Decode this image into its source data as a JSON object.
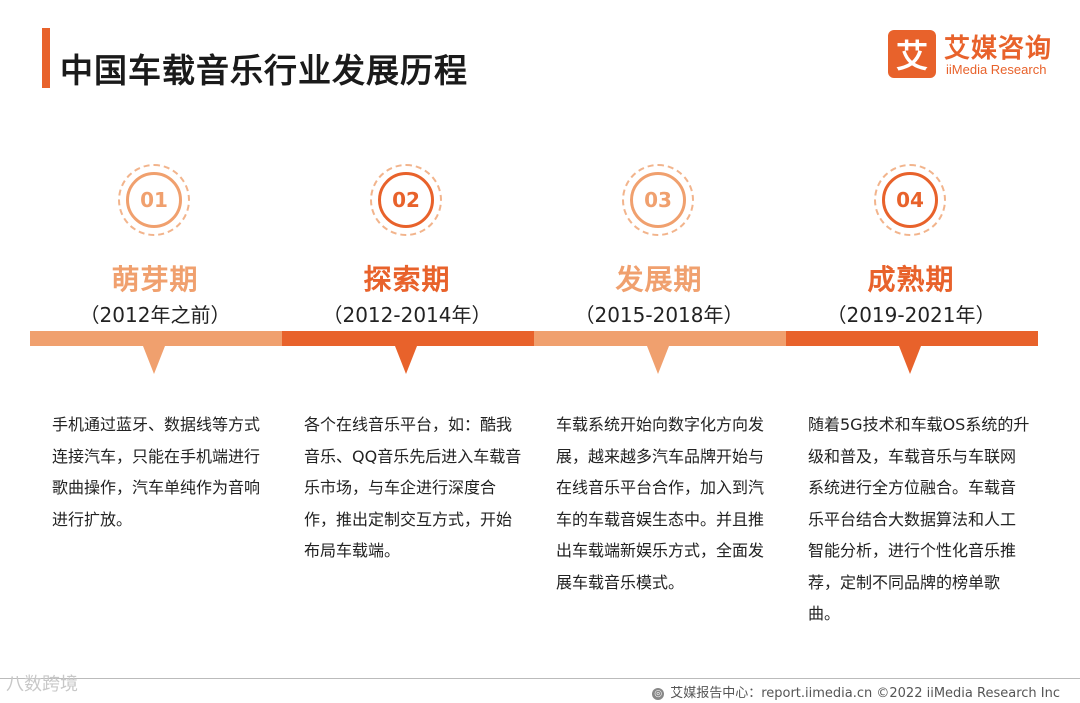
{
  "title": "中国车载音乐行业发展历程",
  "logo": {
    "mark": "艾",
    "cn": "艾媒咨询",
    "en": "iiMedia Research"
  },
  "stages": [
    {
      "num": "01",
      "name": "萌芽期",
      "period": "（2012年之前）",
      "desc": "手机通过蓝牙、数据线等方式连接汽车，只能在手机端进行歌曲操作，汽车单纯作为音响进行扩放。",
      "color": "#f0a06e"
    },
    {
      "num": "02",
      "name": "探索期",
      "period": "（2012-2014年）",
      "desc": "各个在线音乐平台，如：酷我音乐、QQ音乐先后进入车载音乐市场，与车企进行深度合作，推出定制交互方式，开始布局车载端。",
      "color": "#e8622b"
    },
    {
      "num": "03",
      "name": "发展期",
      "period": "（2015-2018年）",
      "desc": "车载系统开始向数字化方向发展，越来越多汽车品牌开始与在线音乐平台合作，加入到汽车的车载音娱生态中。并且推出车载端新娱乐方式，全面发展车载音乐模式。",
      "color": "#f0a06e"
    },
    {
      "num": "04",
      "name": "成熟期",
      "period": "（2019-2021年）",
      "desc": "随着5G技术和车载OS系统的升级和普及，车载音乐与车联网系统进行全方位融合。车载音乐平台结合大数据算法和人工智能分析，进行个性化音乐推荐，定制不同品牌的榜单歌曲。",
      "color": "#e8622b"
    }
  ],
  "watermark": "八数跨境",
  "footer": "艾媒报告中心：report.iimedia.cn ©2022 iiMedia Research Inc"
}
